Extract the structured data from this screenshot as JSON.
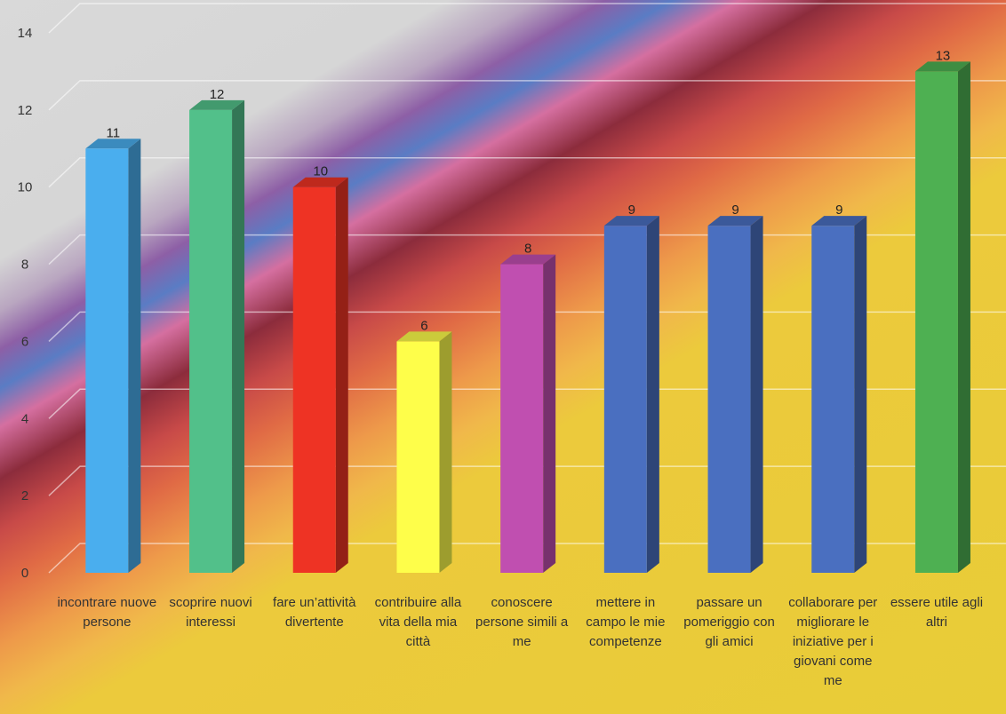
{
  "chart_data": {
    "type": "bar",
    "categories": [
      "incontrare nuove persone",
      "scoprire nuovi interessi",
      "fare un’attività divertente",
      "contribuire alla vita della mia città",
      "conoscere persone simili a me",
      "mettere in campo le mie competenze",
      "passare un pomeriggio con gli amici",
      "collaborare per migliorare le iniziative per i giovani come me",
      "essere utile agli altri"
    ],
    "values": [
      11,
      12,
      10,
      6,
      8,
      9,
      9,
      9,
      13
    ],
    "colors": [
      "#4aaeee",
      "#52c08a",
      "#ee3324",
      "#fefe4a",
      "#c04fb0",
      "#4a6fc0",
      "#4a6fc0",
      "#4a6fc0",
      "#4eb052"
    ],
    "ylim": [
      0,
      14
    ],
    "yticks": [
      0,
      2,
      4,
      6,
      8,
      10,
      12,
      14
    ],
    "data_labels": true,
    "grid": true,
    "legend": "none",
    "style": "3d-columns"
  }
}
